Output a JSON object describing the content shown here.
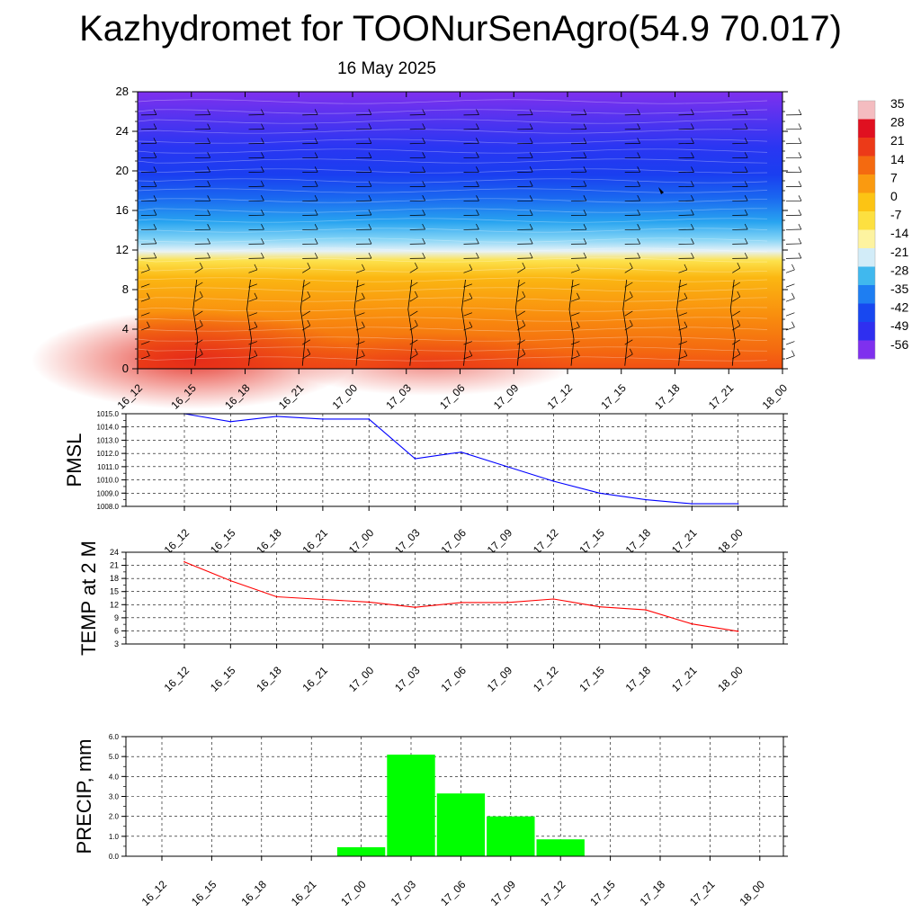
{
  "title": "Kazhydromet for TOONurSenAgro(54.9 70.017)",
  "subtitle": "16 May 2025",
  "x_tick_labels": [
    "16_12",
    "16_15",
    "16_18",
    "16_21",
    "17_00",
    "17_03",
    "17_06",
    "17_09",
    "17_12",
    "17_15",
    "17_18",
    "17_21",
    "18_00"
  ],
  "chart_data": [
    {
      "id": "cross-section",
      "type": "heatmap",
      "x": [
        "16_12",
        "16_15",
        "16_18",
        "16_21",
        "17_00",
        "17_03",
        "17_06",
        "17_09",
        "17_12",
        "17_15",
        "17_18",
        "17_21",
        "18_00"
      ],
      "y_ticks": [
        0,
        4,
        8,
        12,
        16,
        20,
        24,
        28
      ],
      "ylim": [
        0,
        28
      ],
      "color_levels": [
        {
          "value": 35,
          "color": "#f4bcc0"
        },
        {
          "value": 28,
          "color": "#e01020"
        },
        {
          "value": 21,
          "color": "#ec3a18"
        },
        {
          "value": 14,
          "color": "#f46a10"
        },
        {
          "value": 7,
          "color": "#fa9a10"
        },
        {
          "value": 0,
          "color": "#fcc414"
        },
        {
          "value": -7,
          "color": "#fde040"
        },
        {
          "value": -14,
          "color": "#fdf3a0"
        },
        {
          "value": -21,
          "color": "#d2ecf8"
        },
        {
          "value": -28,
          "color": "#40b8ee"
        },
        {
          "value": -35,
          "color": "#1e7ef2"
        },
        {
          "value": -42,
          "color": "#1848f0"
        },
        {
          "value": -49,
          "color": "#2f2ff0"
        },
        {
          "value": -56,
          "color": "#7f30ee"
        }
      ],
      "colorbar_labels": [
        "35",
        "28",
        "21",
        "14",
        "7",
        "0",
        "-7",
        "-14",
        "-21",
        "-28",
        "-35",
        "-42",
        "-49",
        "-56"
      ],
      "grid": false
    },
    {
      "id": "pmsl",
      "type": "line",
      "ylabel": "PMSL",
      "categories": [
        "16_12",
        "16_15",
        "16_18",
        "16_21",
        "17_00",
        "17_03",
        "17_06",
        "17_09",
        "17_12",
        "17_15",
        "17_18",
        "17_21",
        "18_00"
      ],
      "values": [
        1015.0,
        1014.4,
        1014.8,
        1014.6,
        1014.6,
        1011.6,
        1012.1,
        1011.0,
        1009.9,
        1009.0,
        1008.5,
        1008.2,
        1008.2
      ],
      "ylim": [
        1008.0,
        1015.0
      ],
      "y_ticks": [
        1008.0,
        1009.0,
        1010.0,
        1011.0,
        1012.0,
        1013.0,
        1014.0,
        1015.0
      ],
      "y_tick_labels": [
        "1008.0",
        "1009.0",
        "1010.0",
        "1011.0",
        "1012.0",
        "1013.0",
        "1014.0",
        "1015.0"
      ],
      "color": "#0000ff",
      "grid": true
    },
    {
      "id": "temp",
      "type": "line",
      "ylabel": "TEMP at 2 M",
      "categories": [
        "16_12",
        "16_15",
        "16_18",
        "16_21",
        "17_00",
        "17_03",
        "17_06",
        "17_09",
        "17_12",
        "17_15",
        "17_18",
        "17_21",
        "18_00"
      ],
      "values": [
        21.8,
        17.5,
        13.8,
        13.2,
        12.6,
        11.4,
        12.5,
        12.5,
        13.3,
        11.5,
        10.8,
        7.6,
        5.9
      ],
      "ylim": [
        3,
        24
      ],
      "y_ticks": [
        3,
        6,
        9,
        12,
        15,
        18,
        21,
        24
      ],
      "y_tick_labels": [
        "3",
        "6",
        "9",
        "12",
        "15",
        "18",
        "21",
        "24"
      ],
      "color": "#ff0000",
      "grid": true
    },
    {
      "id": "precip",
      "type": "bar",
      "ylabel": "PRECIP, mm",
      "categories": [
        "16_12",
        "16_15",
        "16_18",
        "16_21",
        "17_00",
        "17_03",
        "17_06",
        "17_09",
        "17_12",
        "17_15",
        "17_18",
        "17_21",
        "18_00"
      ],
      "values": [
        0,
        0,
        0,
        0,
        0.45,
        5.1,
        3.15,
        2.0,
        0.85,
        0,
        0,
        0,
        0
      ],
      "ylim": [
        0,
        6.0
      ],
      "y_ticks": [
        0,
        1,
        2,
        3,
        4,
        5,
        6
      ],
      "y_tick_labels": [
        "0.0",
        "1.0",
        "2.0",
        "3.0",
        "4.0",
        "5.0",
        "6.0"
      ],
      "color": "#00ff00",
      "grid": true
    }
  ]
}
